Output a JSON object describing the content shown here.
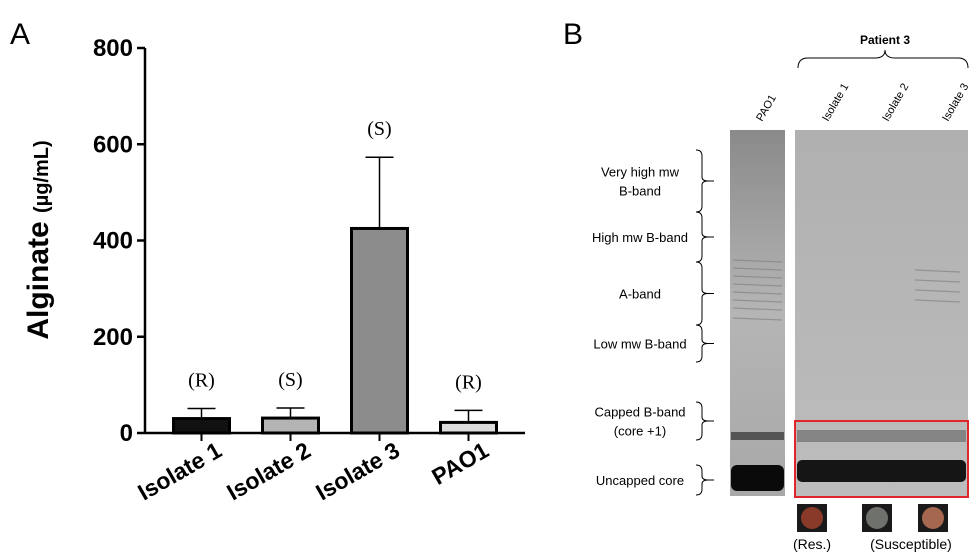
{
  "chart_data": {
    "type": "bar",
    "y_label": "Alginate",
    "y_unit": "(µg/mL)",
    "categories": [
      "Isolate 1",
      "Isolate 2",
      "Isolate 3",
      "PAO1"
    ],
    "values": [
      30,
      31,
      425,
      22
    ],
    "errors": [
      21,
      21,
      148,
      25
    ],
    "annotations": [
      "(R)",
      "(S)",
      "(S)",
      "(R)"
    ],
    "colors": [
      "#111111",
      "#b4b4b4",
      "#8c8c8c",
      "#dcdcdc"
    ],
    "ylim": [
      0,
      800
    ],
    "yticks": [
      0,
      200,
      400,
      600,
      800
    ]
  },
  "panel_labels": [
    "A",
    "B"
  ],
  "gel": {
    "group_label": "Patient 3",
    "lanes": [
      "PAO1",
      "Isolate 1",
      "Isolate 2",
      "Isolate 3"
    ],
    "band_labels": [
      [
        "Very high mw",
        "B-band"
      ],
      [
        "High mw B-band"
      ],
      [
        "A-band"
      ],
      [
        "Low mw B-band"
      ],
      [
        "Capped B-band",
        "(core +1)"
      ],
      [
        "Uncapped core"
      ]
    ],
    "phenotypes": [
      "(Res.)",
      "(Susceptible)"
    ]
  }
}
